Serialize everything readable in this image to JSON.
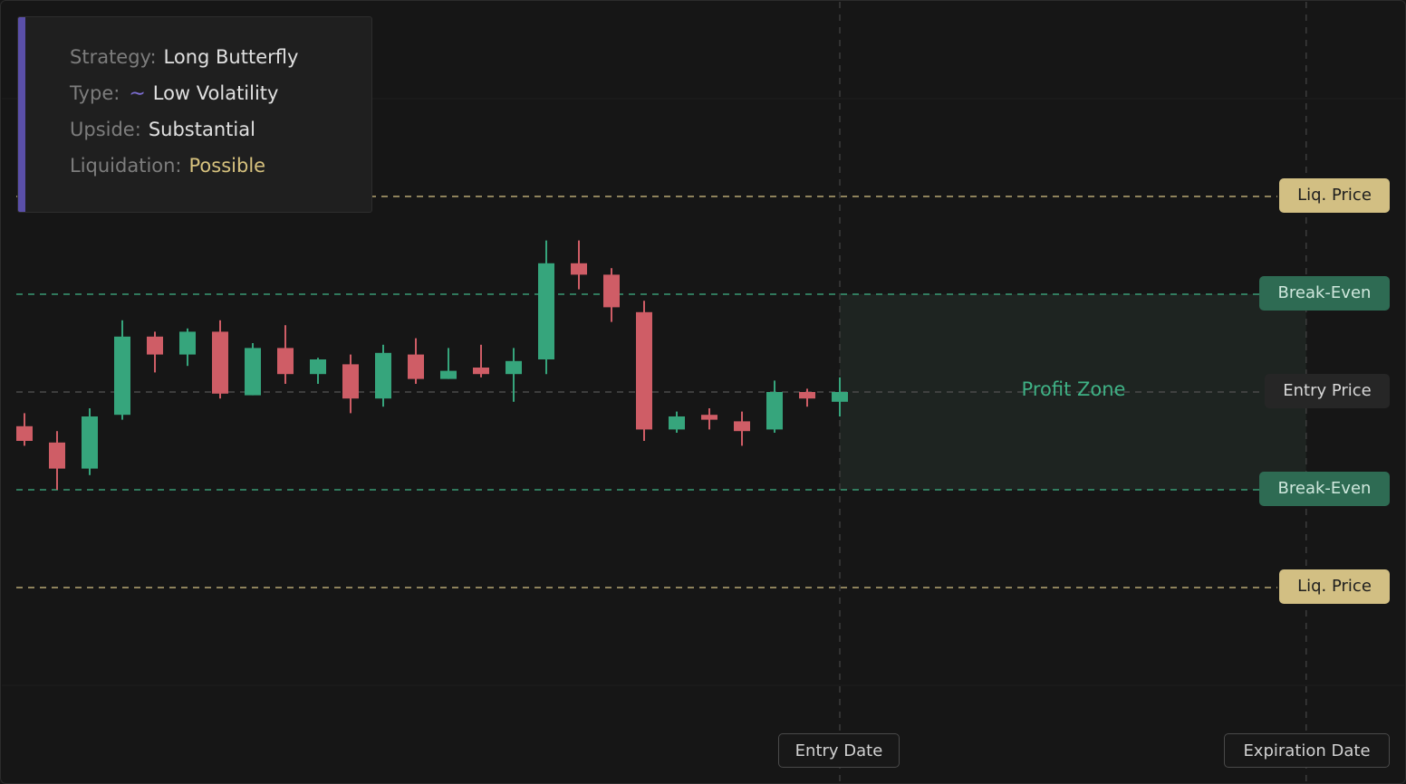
{
  "info": {
    "strategy_label": "Strategy:",
    "strategy_value": "Long Butterfly",
    "type_label": "Type:",
    "type_icon": "tilde-wave-icon",
    "type_value": "Low Volatility",
    "upside_label": "Upside:",
    "upside_value": "Substantial",
    "liquidation_label": "Liquidation:",
    "liquidation_value": "Possible"
  },
  "levels": {
    "liq_upper": "Liq. Price",
    "breakeven_upper": "Break-Even",
    "entry": "Entry Price",
    "breakeven_lower": "Break-Even",
    "liq_lower": "Liq. Price"
  },
  "zone_label": "Profit Zone",
  "dates": {
    "entry": "Entry Date",
    "expiration": "Expiration Date"
  },
  "colors": {
    "background": "#161616",
    "up": "#36a57c",
    "down": "#cf5d66",
    "liq": "#d2bf83",
    "breakeven": "#3fb185",
    "accent": "#5a4fa8"
  },
  "chart_data": {
    "type": "candlestick",
    "ylim": [
      -18,
      18
    ],
    "levels": {
      "liq_upper": 12,
      "breakeven_upper": 6,
      "entry": 0,
      "breakeven_lower": -6,
      "liq_lower": -12
    },
    "entry_index": 25,
    "expiration_index": 39.3,
    "candles": [
      {
        "o": -2.1,
        "h": -1.3,
        "l": -3.3,
        "c": -3.0
      },
      {
        "o": -3.1,
        "h": -2.4,
        "l": -6.0,
        "c": -4.7
      },
      {
        "o": -4.7,
        "h": -1.0,
        "l": -5.1,
        "c": -1.5
      },
      {
        "o": -1.4,
        "h": 4.4,
        "l": -1.7,
        "c": 3.4
      },
      {
        "o": 3.4,
        "h": 3.7,
        "l": 1.2,
        "c": 2.3
      },
      {
        "o": 2.3,
        "h": 3.9,
        "l": 1.6,
        "c": 3.7
      },
      {
        "o": 3.7,
        "h": 4.4,
        "l": -0.4,
        "c": -0.1
      },
      {
        "o": -0.2,
        "h": 3.0,
        "l": -0.2,
        "c": 2.7
      },
      {
        "o": 2.7,
        "h": 4.1,
        "l": 0.5,
        "c": 1.1
      },
      {
        "o": 1.1,
        "h": 2.1,
        "l": 0.5,
        "c": 2.0
      },
      {
        "o": 1.7,
        "h": 2.3,
        "l": -1.3,
        "c": -0.4
      },
      {
        "o": -0.4,
        "h": 2.9,
        "l": -0.9,
        "c": 2.4
      },
      {
        "o": 2.3,
        "h": 3.3,
        "l": 0.5,
        "c": 0.8
      },
      {
        "o": 0.8,
        "h": 2.7,
        "l": 0.8,
        "c": 1.3
      },
      {
        "o": 1.5,
        "h": 2.9,
        "l": 0.9,
        "c": 1.1
      },
      {
        "o": 1.1,
        "h": 2.7,
        "l": -0.6,
        "c": 1.9
      },
      {
        "o": 2.0,
        "h": 9.3,
        "l": 1.1,
        "c": 7.9
      },
      {
        "o": 7.9,
        "h": 9.3,
        "l": 6.3,
        "c": 7.2
      },
      {
        "o": 7.2,
        "h": 7.6,
        "l": 4.3,
        "c": 5.2
      },
      {
        "o": 4.9,
        "h": 5.6,
        "l": -3.0,
        "c": -2.3
      },
      {
        "o": -2.3,
        "h": -1.2,
        "l": -2.5,
        "c": -1.5
      },
      {
        "o": -1.4,
        "h": -1.0,
        "l": -2.3,
        "c": -1.7
      },
      {
        "o": -1.8,
        "h": -1.2,
        "l": -3.3,
        "c": -2.4
      },
      {
        "o": -2.3,
        "h": 0.7,
        "l": -2.5,
        "c": 0.0
      },
      {
        "o": 0.0,
        "h": 0.2,
        "l": -0.9,
        "c": -0.4
      },
      {
        "o": -0.6,
        "h": 0.9,
        "l": -1.5,
        "c": 0.0
      }
    ]
  }
}
